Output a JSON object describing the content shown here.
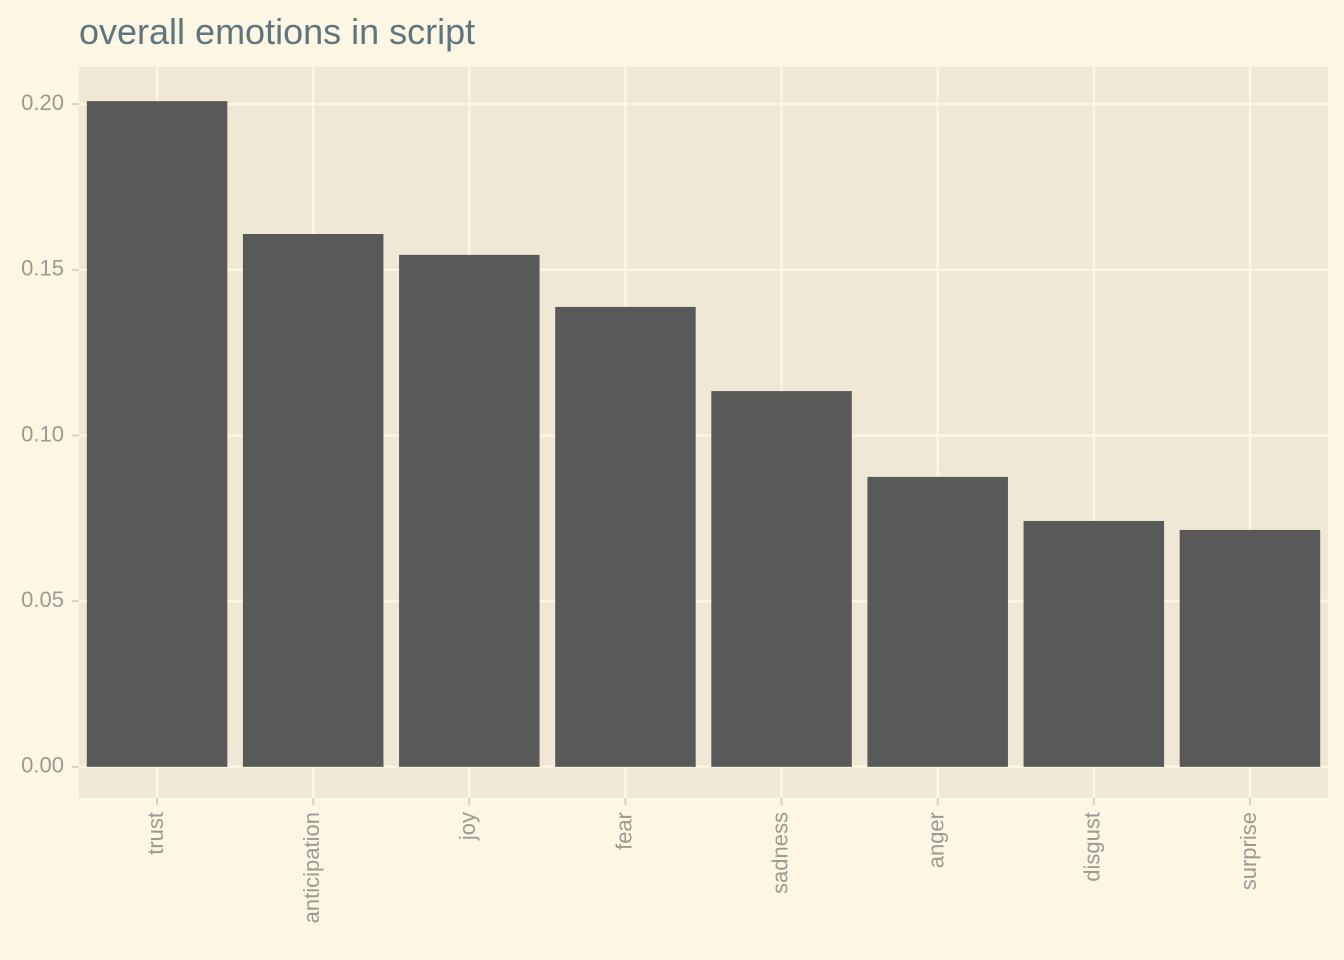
{
  "chart_data": {
    "type": "bar",
    "title": "overall emotions in script",
    "categories": [
      "trust",
      "anticipation",
      "joy",
      "fear",
      "sadness",
      "anger",
      "disgust",
      "surprise"
    ],
    "values": [
      0.2009,
      0.1608,
      0.1545,
      0.1388,
      0.1134,
      0.0875,
      0.0742,
      0.0715
    ],
    "color": "#595959",
    "ylim": [
      -0.0094,
      0.2112
    ],
    "yticks": [
      {
        "value": 0,
        "label": "0.00"
      },
      {
        "value": 0.05,
        "label": "0.05"
      },
      {
        "value": 0.1,
        "label": "0.10"
      },
      {
        "value": 0.15,
        "label": "0.15"
      },
      {
        "value": 0.2,
        "label": "0.20"
      }
    ],
    "grid": true
  }
}
